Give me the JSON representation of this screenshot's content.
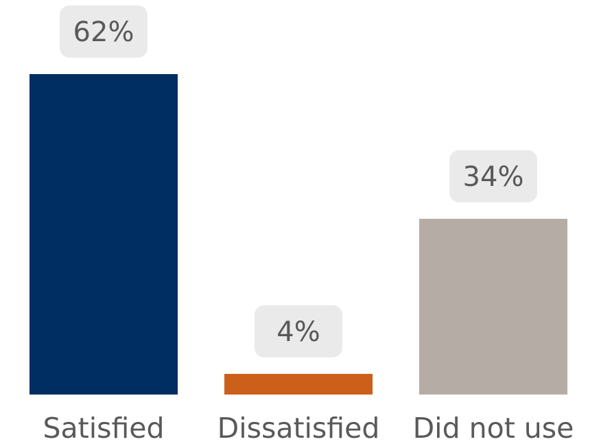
{
  "chart_data": {
    "type": "bar",
    "categories": [
      "Satisfied",
      "Dissatisfied",
      "Did not use"
    ],
    "values": [
      62,
      4,
      34
    ],
    "value_labels": [
      "62%",
      "4%",
      "34%"
    ],
    "unit": "%",
    "ylim": [
      0,
      62
    ],
    "grid": false,
    "legend": "none",
    "colors": [
      "#002D62",
      "#CC5F1A",
      "#B5ADA5"
    ],
    "label_box_color": "#EAEAEA",
    "text_color": "#595959"
  }
}
